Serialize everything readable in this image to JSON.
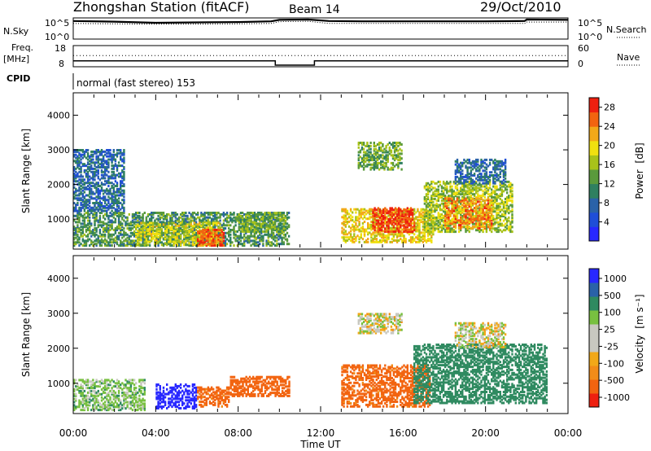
{
  "header": {
    "station": "Zhongshan Station (fitACF)",
    "beam": "Beam 14",
    "date": "29/Oct/2010"
  },
  "status_panels": {
    "nsky_label": "N.Sky",
    "nsky_ticks": [
      "10^5",
      "10^0"
    ],
    "nsearch_label": "N.Search",
    "nsearch_ticks": [
      "10^5",
      "10^0"
    ],
    "freq_label": "Freq.",
    "freq_unit": "[MHz]",
    "freq_ticks": [
      "18",
      "8"
    ],
    "nave_label": "Nave",
    "nave_ticks": [
      "60",
      "0"
    ],
    "cpid_label": "CPID",
    "cpid_text": "normal (fast stereo) 153"
  },
  "colors": {
    "power_scale": [
      "#2828ff",
      "#1f4ed8",
      "#2a62a8",
      "#2f8060",
      "#5a9a3c",
      "#a8c21a",
      "#f0e010",
      "#f2a818",
      "#f26410",
      "#ee2010"
    ],
    "velocity_scale": [
      "#ee2010",
      "#f26410",
      "#f28c18",
      "#f2a818",
      "#c8c8c0",
      "#c8c8c0",
      "#78c040",
      "#2f8a60",
      "#2a62a8",
      "#2828ff"
    ]
  },
  "chart_data": [
    {
      "type": "line",
      "title": "N.Sky / N.Search",
      "x_unit": "hours UT",
      "series": [
        {
          "name": "N.Sky",
          "x": [
            0,
            2,
            4,
            6,
            8,
            9.6,
            10.0,
            11.4,
            12.4,
            14,
            16,
            18,
            20,
            21.9,
            22.0,
            24
          ],
          "y": [
            4.6,
            4.4,
            4.1,
            4.2,
            4.3,
            4.5,
            4.9,
            5.0,
            4.6,
            4.5,
            4.5,
            4.5,
            4.5,
            4.6,
            5.0,
            4.9
          ]
        },
        {
          "name": "N.Search",
          "x": [
            0,
            4,
            8,
            9.6,
            10.0,
            11.4,
            12.4,
            16,
            20,
            21.9,
            22.0,
            24
          ],
          "y": [
            3.9,
            3.7,
            3.8,
            3.9,
            4.4,
            4.5,
            3.9,
            3.9,
            3.9,
            3.9,
            4.3,
            4.3
          ]
        }
      ],
      "ylim": [
        0,
        5
      ]
    },
    {
      "type": "line",
      "title": "Freq. / Nave",
      "series": [
        {
          "name": "Freq.",
          "x": [
            0,
            9.8,
            9.8,
            11.7,
            11.7,
            12.4,
            12.4,
            24
          ],
          "y": [
            10.4,
            10.4,
            8,
            8,
            10.4,
            10.4,
            10.4,
            10.4
          ]
        },
        {
          "name": "Nave",
          "x": [
            0,
            24
          ],
          "y": [
            32,
            32
          ]
        }
      ],
      "ylim_freq": [
        8,
        18
      ],
      "ylim_nave": [
        0,
        60
      ]
    },
    {
      "type": "heatmap",
      "title": "Power",
      "xlabel": "Time UT",
      "ylabel": "Slant Range [km]",
      "xlim": [
        0,
        24
      ],
      "ylim": [
        180,
        4600
      ],
      "x_ticks": [
        "00:00",
        "04:00",
        "08:00",
        "12:00",
        "16:00",
        "20:00",
        "00:00"
      ],
      "y_ticks": [
        1000,
        2000,
        3000,
        4000
      ],
      "colorbar_label": "Power [dB]",
      "colorbar_ticks": [
        4,
        8,
        12,
        16,
        20,
        24,
        28
      ],
      "colorbar_range": [
        0,
        30
      ],
      "echo_regions": [
        {
          "t0": 0.0,
          "t1": 10.5,
          "r0": 200,
          "r1": 1200,
          "level": 12
        },
        {
          "t0": 0.0,
          "t1": 2.5,
          "r0": 1200,
          "r1": 3000,
          "level": 8
        },
        {
          "t0": 3.0,
          "t1": 7.2,
          "r0": 220,
          "r1": 900,
          "level": 18
        },
        {
          "t0": 6.0,
          "t1": 7.3,
          "r0": 200,
          "r1": 700,
          "level": 26
        },
        {
          "t0": 8.0,
          "t1": 10.3,
          "r0": 600,
          "r1": 1200,
          "level": 14
        },
        {
          "t0": 13.0,
          "t1": 17.5,
          "r0": 300,
          "r1": 1300,
          "level": 20
        },
        {
          "t0": 14.5,
          "t1": 16.6,
          "r0": 600,
          "r1": 1300,
          "level": 28
        },
        {
          "t0": 13.8,
          "t1": 16.0,
          "r0": 2400,
          "r1": 3200,
          "level": 14
        },
        {
          "t0": 17.0,
          "t1": 21.3,
          "r0": 600,
          "r1": 2100,
          "level": 16
        },
        {
          "t0": 18.0,
          "t1": 20.3,
          "r0": 700,
          "r1": 1600,
          "level": 24
        },
        {
          "t0": 18.5,
          "t1": 21.0,
          "r0": 2000,
          "r1": 2700,
          "level": 8
        }
      ]
    },
    {
      "type": "heatmap",
      "title": "Velocity",
      "xlabel": "Time UT",
      "ylabel": "Slant Range [km]",
      "xlim": [
        0,
        24
      ],
      "ylim": [
        180,
        4600
      ],
      "x_ticks": [
        "00:00",
        "04:00",
        "08:00",
        "12:00",
        "16:00",
        "20:00",
        "00:00"
      ],
      "y_ticks": [
        1000,
        2000,
        3000,
        4000
      ],
      "colorbar_label": "Velocity [m s⁻¹]",
      "colorbar_ticks": [
        1000,
        500,
        100,
        25,
        -25,
        -100,
        -500,
        -1000
      ],
      "echo_regions": [
        {
          "t0": 0.0,
          "t1": 3.5,
          "r0": 200,
          "r1": 1100,
          "v": 60
        },
        {
          "t0": 4.0,
          "t1": 6.0,
          "r0": 250,
          "r1": 950,
          "v": 800
        },
        {
          "t0": 6.0,
          "t1": 7.6,
          "r0": 300,
          "r1": 900,
          "v": -150
        },
        {
          "t0": 7.6,
          "t1": 10.5,
          "r0": 600,
          "r1": 1200,
          "v": -300
        },
        {
          "t0": 13.0,
          "t1": 17.3,
          "r0": 300,
          "r1": 1500,
          "v": -150
        },
        {
          "t0": 13.8,
          "t1": 16.0,
          "r0": 2400,
          "r1": 3000,
          "v": 0
        },
        {
          "t0": 16.5,
          "t1": 23.0,
          "r0": 400,
          "r1": 2100,
          "v": 200
        },
        {
          "t0": 18.5,
          "t1": 21.0,
          "r0": 2000,
          "r1": 2700,
          "v": 0
        }
      ]
    }
  ],
  "axis_labels": {
    "ylabel": "Slant Range [km]",
    "xlabel": "Time UT",
    "power_label": "Power",
    "power_unit": "[dB]",
    "velocity_label": "Velocity",
    "velocity_unit": "[m s⁻¹]"
  }
}
